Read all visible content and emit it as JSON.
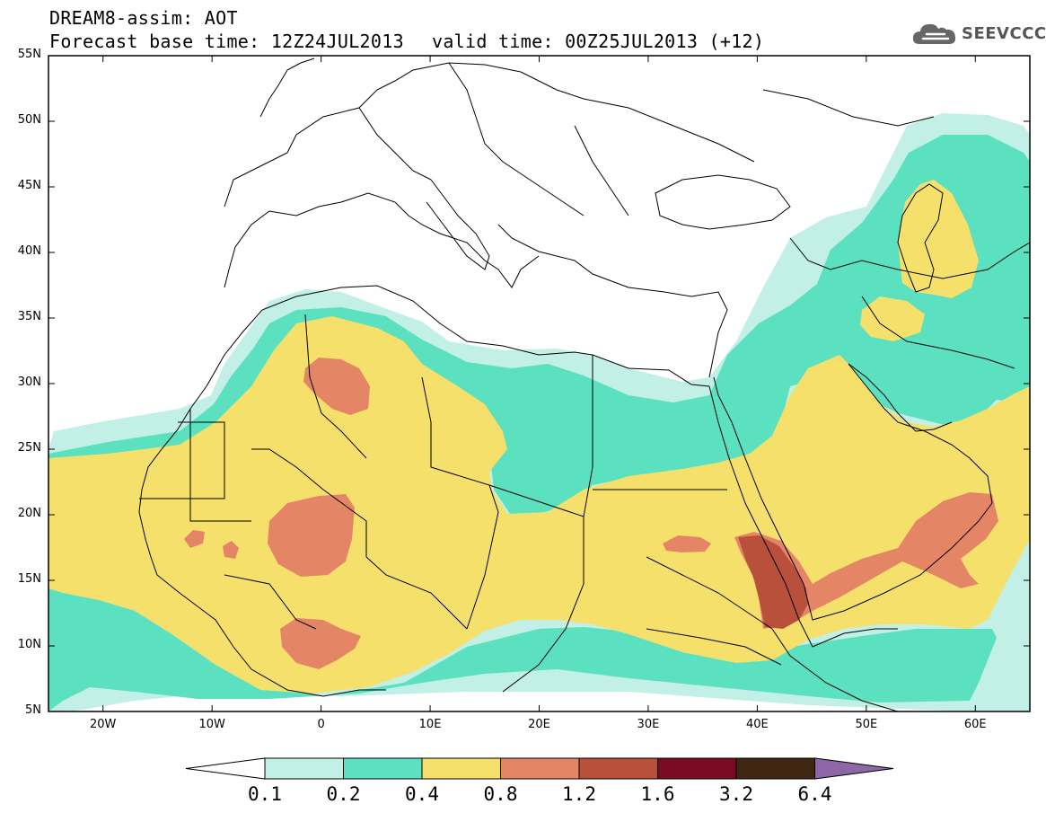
{
  "header": {
    "title": "DREAM8-assim: AOT",
    "forecast_base": "Forecast base time: 12Z24JUL2013",
    "valid_time": "valid time: 00Z25JUL2013 (+12)"
  },
  "logo": {
    "text": "SEEVCCC",
    "icon": "cloud-icon"
  },
  "map": {
    "lat_labels": [
      "55N",
      "50N",
      "45N",
      "40N",
      "35N",
      "30N",
      "25N",
      "20N",
      "15N",
      "10N",
      "5N"
    ],
    "lon_labels": [
      "20W",
      "10W",
      "0",
      "10E",
      "20E",
      "30E",
      "40E",
      "50E",
      "60E"
    ],
    "lat_range": [
      5,
      55
    ],
    "lon_range": [
      -25,
      65
    ]
  },
  "colorbar": {
    "levels": [
      "0.1",
      "0.2",
      "0.4",
      "0.8",
      "1.2",
      "1.6",
      "3.2",
      "6.4"
    ],
    "colors": [
      "#ffffff",
      "#c2efe6",
      "#5ce1c0",
      "#f5e06c",
      "#e48565",
      "#b8503c",
      "#7b0b24",
      "#3f2713",
      "#8e67a8"
    ]
  },
  "palette": {
    "very_light": "#c2efe6",
    "light": "#5ce1c0",
    "medium": "#f5e06c",
    "high": "#e48565",
    "very_high": "#b8503c"
  }
}
